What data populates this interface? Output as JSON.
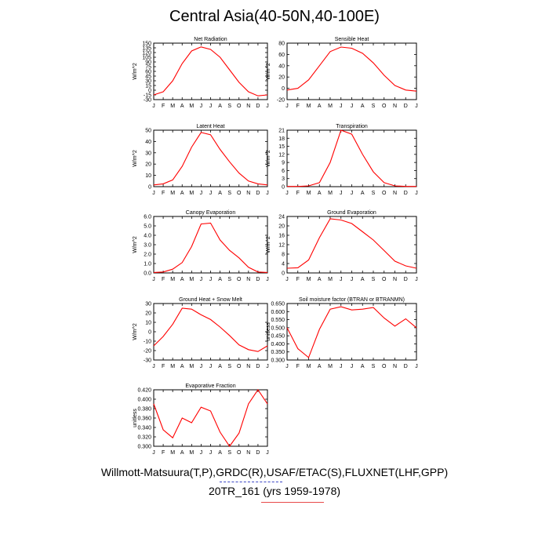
{
  "title": "Central Asia(40-50N,40-100E)",
  "caption_line1": "Willmott-Matsuura(T,P),GRDC(R),USAF/ETAC(S),FLUXNET(LHF,GPP)",
  "caption_line2": "20TR_161 (yrs 1959-1978)",
  "colors": {
    "line": "#ff0000",
    "axis": "#000000"
  },
  "chart_data": [
    {
      "type": "line",
      "title": "Net Radiation",
      "ylabel": "W/m^2",
      "x": [
        "J",
        "F",
        "M",
        "A",
        "M",
        "J",
        "J",
        "A",
        "S",
        "O",
        "N",
        "D",
        "J"
      ],
      "yticks": [
        "-30",
        "-15",
        "0",
        "15",
        "30",
        "45",
        "60",
        "75",
        "90",
        "105",
        "120",
        "135",
        "150"
      ],
      "ylim": [
        -30,
        150
      ],
      "values": [
        -15,
        -5,
        30,
        85,
        125,
        138,
        130,
        105,
        65,
        25,
        -5,
        -18,
        -15
      ]
    },
    {
      "type": "line",
      "title": "Sensible Heat",
      "ylabel": "W/m^2",
      "x": [
        "J",
        "F",
        "M",
        "A",
        "M",
        "J",
        "J",
        "A",
        "S",
        "O",
        "N",
        "D",
        "J"
      ],
      "yticks": [
        "-20",
        "0",
        "20",
        "40",
        "60",
        "80"
      ],
      "ylim": [
        -20,
        80
      ],
      "values": [
        -3,
        0,
        15,
        40,
        65,
        73,
        71,
        62,
        45,
        23,
        5,
        -3,
        -5
      ]
    },
    {
      "type": "line",
      "title": "Latent Heat",
      "ylabel": "W/m^2",
      "x": [
        "J",
        "F",
        "M",
        "A",
        "M",
        "J",
        "J",
        "A",
        "S",
        "O",
        "N",
        "D",
        "J"
      ],
      "yticks": [
        "0",
        "10",
        "20",
        "30",
        "40",
        "50"
      ],
      "ylim": [
        0,
        50
      ],
      "values": [
        1.5,
        2.5,
        6,
        18,
        35,
        48,
        46,
        33,
        22,
        12,
        5,
        2.5,
        1.5
      ]
    },
    {
      "type": "line",
      "title": "Transpiration",
      "ylabel": "W/m^2",
      "x": [
        "J",
        "F",
        "M",
        "A",
        "M",
        "J",
        "J",
        "A",
        "S",
        "O",
        "N",
        "D",
        "J"
      ],
      "yticks": [
        "0",
        "3",
        "6",
        "9",
        "12",
        "15",
        "18",
        "21"
      ],
      "ylim": [
        0,
        21
      ],
      "values": [
        0.1,
        0.1,
        0.3,
        1.5,
        9,
        21,
        19.5,
        12,
        5.5,
        1.5,
        0.3,
        0.1,
        0.1
      ]
    },
    {
      "type": "line",
      "title": "Canopy Evaporation",
      "ylabel": "W/m^2",
      "x": [
        "J",
        "F",
        "M",
        "A",
        "M",
        "J",
        "J",
        "A",
        "S",
        "O",
        "N",
        "D",
        "J"
      ],
      "yticks": [
        "0.0",
        "1.0",
        "2.0",
        "3.0",
        "4.0",
        "5.0",
        "6.0"
      ],
      "ylim": [
        0,
        6
      ],
      "values": [
        0.05,
        0.1,
        0.4,
        1.1,
        2.8,
        5.2,
        5.3,
        3.5,
        2.4,
        1.6,
        0.6,
        0.1,
        0.05
      ]
    },
    {
      "type": "line",
      "title": "Ground Evaporation",
      "ylabel": "W/m^2",
      "x": [
        "J",
        "F",
        "M",
        "A",
        "M",
        "J",
        "J",
        "A",
        "S",
        "O",
        "N",
        "D",
        "J"
      ],
      "yticks": [
        "0",
        "4",
        "8",
        "12",
        "16",
        "20",
        "24"
      ],
      "ylim": [
        0,
        24
      ],
      "values": [
        2,
        2.2,
        5.5,
        15,
        23,
        22.5,
        21,
        17.5,
        14,
        9.5,
        5,
        3,
        2
      ]
    },
    {
      "type": "line",
      "title": "Ground Heat + Snow Melt",
      "ylabel": "W/m^2",
      "x": [
        "J",
        "F",
        "M",
        "A",
        "M",
        "J",
        "J",
        "A",
        "S",
        "O",
        "N",
        "D",
        "J"
      ],
      "yticks": [
        "-30",
        "-20",
        "-10",
        "0",
        "10",
        "20",
        "30"
      ],
      "ylim": [
        -30,
        30
      ],
      "values": [
        -15,
        -5,
        8,
        25,
        24,
        18,
        13,
        5,
        -4,
        -14,
        -19,
        -21,
        -15
      ]
    },
    {
      "type": "line",
      "title": "Soil moisture factor (BTRAN or BTRANMN)",
      "ylabel": "unitless",
      "x": [
        "J",
        "F",
        "M",
        "A",
        "M",
        "J",
        "J",
        "A",
        "S",
        "O",
        "N",
        "D",
        "J"
      ],
      "yticks": [
        "0.300",
        "0.350",
        "0.400",
        "0.450",
        "0.500",
        "0.550",
        "0.600",
        "0.650"
      ],
      "ylim": [
        0.3,
        0.65
      ],
      "values": [
        0.5,
        0.37,
        0.315,
        0.49,
        0.615,
        0.63,
        0.61,
        0.615,
        0.625,
        0.56,
        0.51,
        0.555,
        0.5
      ]
    },
    {
      "type": "line",
      "title": "Evaporative Fraction",
      "ylabel": "unitless",
      "x": [
        "J",
        "F",
        "M",
        "A",
        "M",
        "J",
        "J",
        "A",
        "S",
        "O",
        "N",
        "D",
        "J"
      ],
      "yticks": [
        "0.300",
        "0.320",
        "0.340",
        "0.360",
        "0.380",
        "0.400",
        "0.420"
      ],
      "ylim": [
        0.3,
        0.42
      ],
      "values": [
        0.39,
        0.335,
        0.318,
        0.36,
        0.35,
        0.383,
        0.375,
        0.33,
        0.3,
        0.328,
        0.39,
        0.42,
        0.39
      ]
    }
  ]
}
